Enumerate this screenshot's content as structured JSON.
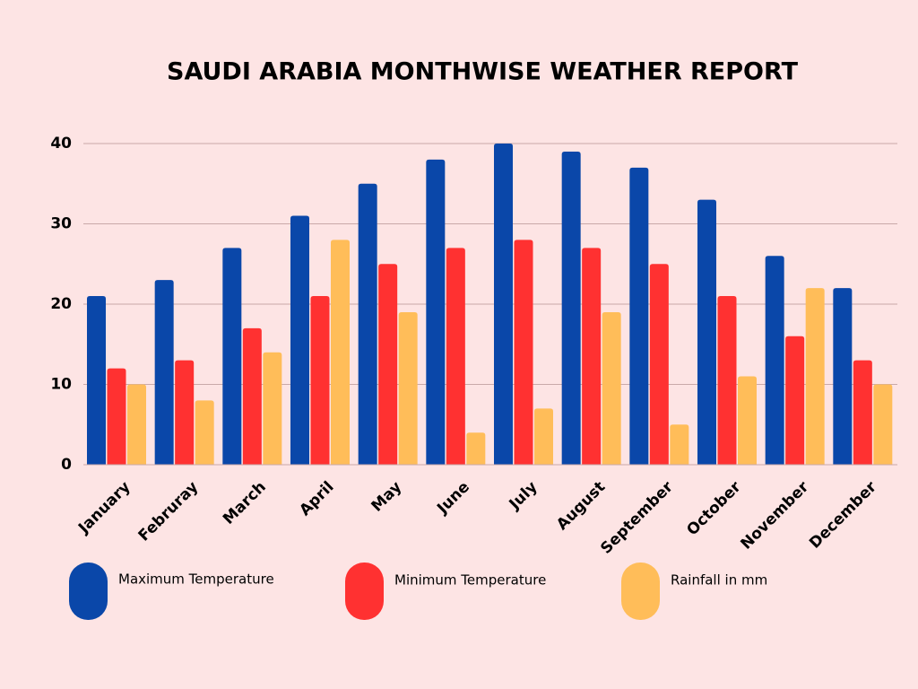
{
  "chart_data": {
    "type": "bar",
    "title": "SAUDI ARABIA MONTHWISE WEATHER REPORT",
    "categories": [
      "January",
      "Februray",
      "March",
      "April",
      "May",
      "June",
      "July",
      "August",
      "September",
      "October",
      "November",
      "December"
    ],
    "series": [
      {
        "name": "Maximum Temperature",
        "color": "#0a47a9",
        "values": [
          21,
          23,
          27,
          31,
          35,
          38,
          40,
          39,
          37,
          33,
          26,
          22
        ]
      },
      {
        "name": "Minimum Temperature",
        "color": "#ff3131",
        "values": [
          12,
          13,
          17,
          21,
          25,
          27,
          28,
          27,
          25,
          21,
          16,
          13
        ]
      },
      {
        "name": "Rainfall in mm",
        "color": "#ffbd59",
        "values": [
          10,
          8,
          14,
          28,
          19,
          4,
          7,
          19,
          5,
          11,
          22,
          10
        ]
      }
    ],
    "ylim": [
      0,
      40
    ],
    "yticks": [
      0,
      10,
      20,
      30,
      40
    ],
    "grid": true
  }
}
